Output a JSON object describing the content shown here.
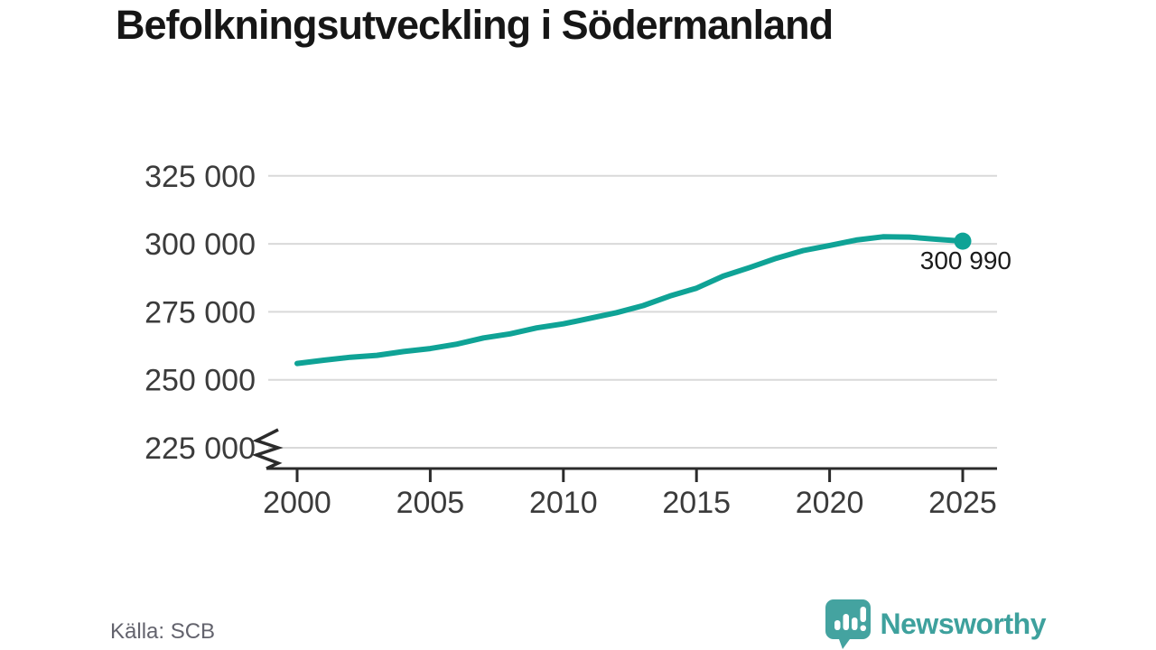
{
  "chart_data": {
    "type": "line",
    "title": "Befolkningsutveckling i Södermanland",
    "x": [
      2000,
      2001,
      2002,
      2003,
      2004,
      2005,
      2006,
      2007,
      2008,
      2009,
      2010,
      2011,
      2012,
      2013,
      2014,
      2015,
      2016,
      2017,
      2018,
      2019,
      2020,
      2021,
      2022,
      2023,
      2024,
      2025
    ],
    "values": [
      256000,
      257200,
      258300,
      259000,
      260400,
      261500,
      263100,
      265400,
      266900,
      269100,
      270600,
      272600,
      274700,
      277300,
      280800,
      283700,
      288100,
      291300,
      294700,
      297500,
      299400,
      301400,
      302600,
      302500,
      301700,
      300990
    ],
    "xlabel": "",
    "ylabel": "",
    "ylim": [
      225000,
      330000
    ],
    "yticks": [
      {
        "value": 225000,
        "label": "225 000"
      },
      {
        "value": 250000,
        "label": "250 000"
      },
      {
        "value": 275000,
        "label": "275 000"
      },
      {
        "value": 300000,
        "label": "300 000"
      },
      {
        "value": 325000,
        "label": "325 000"
      }
    ],
    "xticks": [
      {
        "value": 2000,
        "label": "2000"
      },
      {
        "value": 2005,
        "label": "2005"
      },
      {
        "value": 2010,
        "label": "2010"
      },
      {
        "value": 2015,
        "label": "2015"
      },
      {
        "value": 2020,
        "label": "2020"
      },
      {
        "value": 2025,
        "label": "2025"
      }
    ],
    "annotation": {
      "label": "300 990",
      "value": 300990,
      "year": 2025
    },
    "axis_break": true,
    "grid": "horizontal",
    "legend": "none"
  },
  "colors": {
    "line": "#0fa396",
    "grid": "#d9d9d9",
    "axis": "#2b2b2b",
    "tick_label": "#3b3b3b",
    "annotation": "#1b1b1b",
    "source_text": "#63636d",
    "brand": "#3ea19d",
    "background": "#ffffff"
  },
  "source": {
    "label": "Källa: SCB"
  },
  "branding": {
    "name": "Newsworthy",
    "icon": "bar-chart-speech-bubble-icon"
  }
}
